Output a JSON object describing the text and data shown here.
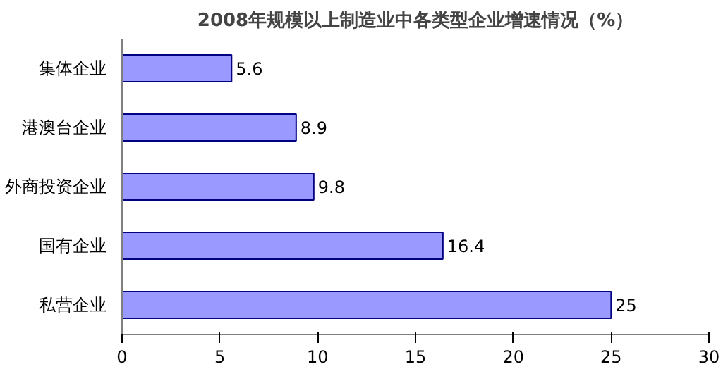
{
  "chart_data": {
    "type": "bar",
    "orientation": "horizontal",
    "title": "2008年规模以上制造业中各类型企业增速情况（%）",
    "categories": [
      "集体企业",
      "港澳台企业",
      "外商投资企业",
      "国有企业",
      "私营企业"
    ],
    "values": [
      5.6,
      8.9,
      9.8,
      16.4,
      25
    ],
    "color": "#9999ff",
    "xlim": [
      0,
      30
    ],
    "xticks": [
      0,
      5,
      10,
      15,
      20,
      25,
      30
    ],
    "data_labels": true,
    "grid": false
  }
}
